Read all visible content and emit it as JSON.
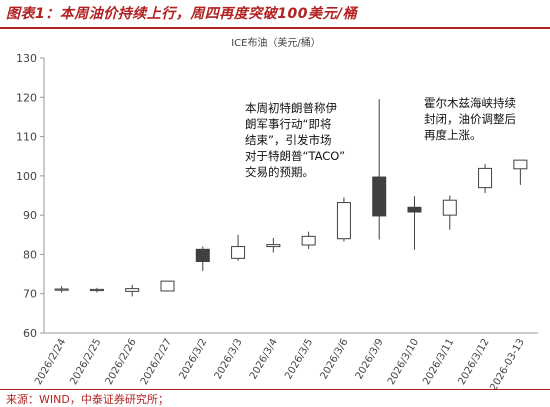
{
  "header": {
    "title": "图表1：本周油价持续上行，周四再度突破100美元/桶"
  },
  "footer": {
    "source": "来源：WIND，中泰证券研究所；"
  },
  "chart_data": {
    "type": "candlestick",
    "title": "ICE布油（美元/桶）",
    "xlabel": "",
    "ylabel": "",
    "ylim": [
      60,
      130
    ],
    "yticks": [
      60,
      70,
      80,
      90,
      100,
      110,
      120,
      130
    ],
    "grid": false,
    "categories": [
      "2026/2/24",
      "2026/2/25",
      "2026/2/26",
      "2026/2/27",
      "2026/3/2",
      "2026/3/3",
      "2026/3/4",
      "2026/3/5",
      "2026/3/6",
      "2026/3/9",
      "2026/3/10",
      "2026/3/11",
      "2026/3/12",
      "2026-03-13"
    ],
    "open": [
      71.0,
      70.8,
      70.6,
      70.7,
      78.2,
      79.0,
      82.0,
      82.4,
      84.0,
      89.8,
      92.0,
      90.0,
      97.0,
      101.8
    ],
    "close": [
      71.2,
      71.1,
      71.3,
      73.2,
      81.3,
      82.0,
      82.5,
      84.6,
      93.2,
      99.7,
      90.8,
      93.8,
      101.9,
      104.0
    ],
    "high": [
      71.9,
      71.5,
      72.3,
      73.2,
      82.0,
      85.0,
      84.2,
      85.8,
      94.5,
      119.5,
      94.8,
      95.0,
      103.0,
      104.0
    ],
    "low": [
      70.3,
      70.3,
      69.3,
      70.7,
      75.8,
      78.4,
      80.5,
      81.4,
      83.3,
      83.8,
      81.2,
      86.3,
      95.6,
      97.7
    ],
    "filled": [
      false,
      false,
      false,
      false,
      true,
      false,
      false,
      false,
      false,
      true,
      true,
      false,
      false,
      false
    ],
    "annotations": [
      {
        "text": "本周初特朗普称伊\n朗军事行动“即将\n结束”，引发市场\n对于特朗普“TACO”\n交易的预期。"
      },
      {
        "text": "霍尔木兹海峡持续\n封闭，油价调整后\n再度上涨。"
      }
    ],
    "colors": {
      "up_fill": "#ffffff",
      "down_fill": "#404040",
      "stroke": "#404040",
      "axis": "#888888",
      "text": "#444444"
    }
  }
}
